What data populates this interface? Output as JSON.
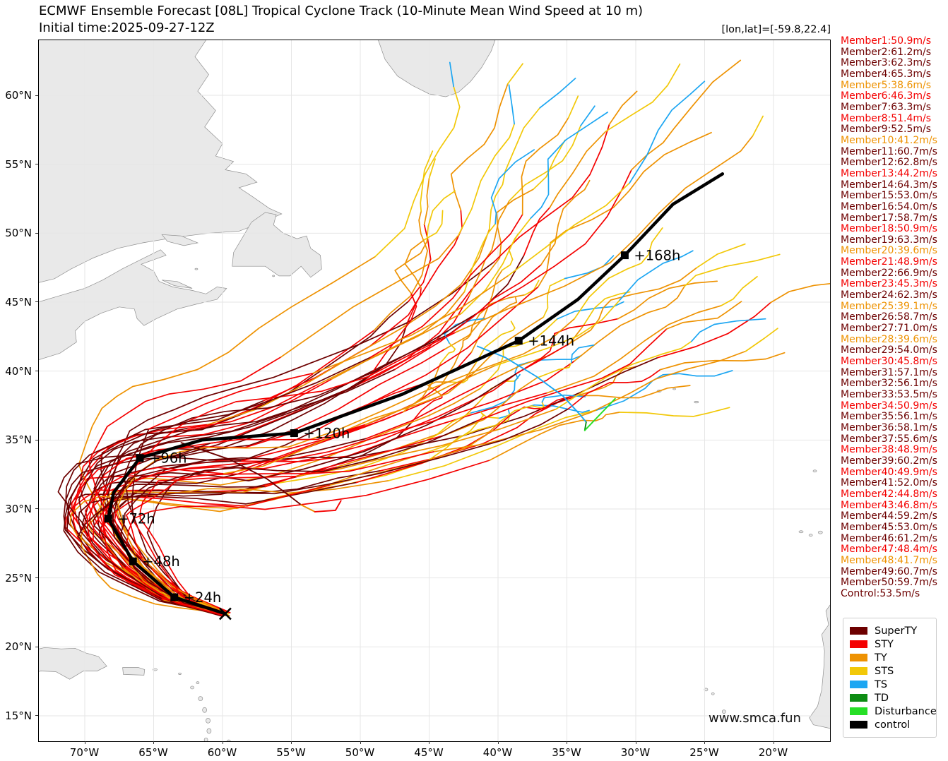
{
  "header": {
    "title": "ECMWF Ensemble Forecast [08L] Tropical Cyclone Track (10-Minute Mean Wind Speed at 10 m)",
    "initial_time": "Initial time:2025-09-27-12Z",
    "position_readout": "[lon,lat]=[-59.8,22.4]"
  },
  "watermark": "www.smca.fun",
  "legend": {
    "items": [
      {
        "label": "SuperTY",
        "category": "SuperTY"
      },
      {
        "label": "STY",
        "category": "STY"
      },
      {
        "label": "TY",
        "category": "TY"
      },
      {
        "label": "STS",
        "category": "STS"
      },
      {
        "label": "TS",
        "category": "TS"
      },
      {
        "label": "TD",
        "category": "TD"
      },
      {
        "label": "Disturbance",
        "category": "Disturbance"
      },
      {
        "label": "control",
        "category": "control"
      }
    ]
  },
  "chart_data": {
    "type": "line",
    "title": "ECMWF Ensemble Forecast [08L] Tropical Cyclone Track (10-Minute Mean Wind Speed at 10 m)",
    "initial_time": "2025-09-27-12Z",
    "storm_id": "08L",
    "start_position": {
      "lon": -59.8,
      "lat": 22.4
    },
    "axes": {
      "lon_ticks": [
        {
          "label": "70°W",
          "lon": -70
        },
        {
          "label": "65°W",
          "lon": -65
        },
        {
          "label": "60°W",
          "lon": -60
        },
        {
          "label": "55°W",
          "lon": -55
        },
        {
          "label": "50°W",
          "lon": -50
        },
        {
          "label": "45°W",
          "lon": -45
        },
        {
          "label": "40°W",
          "lon": -40
        },
        {
          "label": "35°W",
          "lon": -35
        },
        {
          "label": "30°W",
          "lon": -30
        },
        {
          "label": "25°W",
          "lon": -25
        },
        {
          "label": "20°W",
          "lon": -20
        }
      ],
      "lat_ticks": [
        {
          "label": "15°N",
          "lat": 15
        },
        {
          "label": "20°N",
          "lat": 20
        },
        {
          "label": "25°N",
          "lat": 25
        },
        {
          "label": "30°N",
          "lat": 30
        },
        {
          "label": "35°N",
          "lat": 35
        },
        {
          "label": "40°N",
          "lat": 40
        },
        {
          "label": "45°N",
          "lat": 45
        },
        {
          "label": "50°N",
          "lat": 50
        },
        {
          "label": "55°N",
          "lat": 55
        },
        {
          "label": "60°N",
          "lat": 60
        }
      ],
      "lon_range": [
        -73.3,
        -15.9
      ],
      "lat_range": [
        13.2,
        64.0
      ],
      "grid": true
    },
    "categories": {
      "SuperTY": "#6d0000",
      "STY": "#f40000",
      "TY": "#ee9202",
      "STS": "#f2c808",
      "TS": "#1ca6f2",
      "TD": "#0d8c13",
      "Disturbance": "#26df26",
      "control": "#000000"
    },
    "category_thresholds_ms": {
      "SuperTY": 52.0,
      "STY": 42.5,
      "TY": 32.7,
      "STS": 24.5,
      "TS": 17.0,
      "TD": 15.5
    },
    "control_track": {
      "label": "control",
      "wind": "53.5",
      "start": {
        "hour": 0,
        "lon": -59.8,
        "lat": 22.4
      },
      "points": [
        {
          "hour": 24,
          "lon": -63.5,
          "lat": 23.6
        },
        {
          "hour": 48,
          "lon": -66.5,
          "lat": 26.2
        },
        {
          "hour": 72,
          "lon": -68.3,
          "lat": 29.3
        },
        {
          "hour": 96,
          "lon": -66.0,
          "lat": 33.7
        },
        {
          "hour": 120,
          "lon": -54.8,
          "lat": 35.5
        },
        {
          "hour": 144,
          "lon": -38.5,
          "lat": 42.2
        },
        {
          "hour": 168,
          "lon": -30.8,
          "lat": 48.4
        }
      ],
      "path": [
        [
          -59.8,
          22.4
        ],
        [
          -63.5,
          23.6
        ],
        [
          -66.5,
          26.2
        ],
        [
          -68.3,
          29.3
        ],
        [
          -67.9,
          31.2
        ],
        [
          -66.0,
          33.7
        ],
        [
          -61.5,
          35.0
        ],
        [
          -54.8,
          35.5
        ],
        [
          -47.0,
          38.3
        ],
        [
          -38.5,
          42.2
        ],
        [
          -34.2,
          45.2
        ],
        [
          -30.8,
          48.4
        ],
        [
          -29.0,
          50.3
        ],
        [
          -27.3,
          52.1
        ],
        [
          -23.7,
          54.3
        ]
      ]
    },
    "members": [
      {
        "name": "Member1",
        "wind": "50.9",
        "category": "STY"
      },
      {
        "name": "Member2",
        "wind": "61.2",
        "category": "SuperTY"
      },
      {
        "name": "Member3",
        "wind": "62.3",
        "category": "SuperTY"
      },
      {
        "name": "Member4",
        "wind": "65.3",
        "category": "SuperTY"
      },
      {
        "name": "Member5",
        "wind": "38.6",
        "category": "TY"
      },
      {
        "name": "Member6",
        "wind": "46.3",
        "category": "STY"
      },
      {
        "name": "Member7",
        "wind": "63.3",
        "category": "SuperTY"
      },
      {
        "name": "Member8",
        "wind": "51.4",
        "category": "STY"
      },
      {
        "name": "Member9",
        "wind": "52.5",
        "category": "SuperTY"
      },
      {
        "name": "Member10",
        "wind": "41.2",
        "category": "TY"
      },
      {
        "name": "Member11",
        "wind": "60.7",
        "category": "SuperTY"
      },
      {
        "name": "Member12",
        "wind": "62.8",
        "category": "SuperTY"
      },
      {
        "name": "Member13",
        "wind": "44.2",
        "category": "STY"
      },
      {
        "name": "Member14",
        "wind": "64.3",
        "category": "SuperTY"
      },
      {
        "name": "Member15",
        "wind": "53.0",
        "category": "SuperTY"
      },
      {
        "name": "Member16",
        "wind": "54.0",
        "category": "SuperTY"
      },
      {
        "name": "Member17",
        "wind": "58.7",
        "category": "SuperTY"
      },
      {
        "name": "Member18",
        "wind": "50.9",
        "category": "STY"
      },
      {
        "name": "Member19",
        "wind": "63.3",
        "category": "SuperTY"
      },
      {
        "name": "Member20",
        "wind": "39.6",
        "category": "TY"
      },
      {
        "name": "Member21",
        "wind": "48.9",
        "category": "STY"
      },
      {
        "name": "Member22",
        "wind": "66.9",
        "category": "SuperTY"
      },
      {
        "name": "Member23",
        "wind": "45.3",
        "category": "STY"
      },
      {
        "name": "Member24",
        "wind": "62.3",
        "category": "SuperTY"
      },
      {
        "name": "Member25",
        "wind": "39.1",
        "category": "TY"
      },
      {
        "name": "Member26",
        "wind": "58.7",
        "category": "SuperTY"
      },
      {
        "name": "Member27",
        "wind": "71.0",
        "category": "SuperTY"
      },
      {
        "name": "Member28",
        "wind": "39.6",
        "category": "TY"
      },
      {
        "name": "Member29",
        "wind": "54.0",
        "category": "SuperTY"
      },
      {
        "name": "Member30",
        "wind": "45.8",
        "category": "STY"
      },
      {
        "name": "Member31",
        "wind": "57.1",
        "category": "SuperTY"
      },
      {
        "name": "Member32",
        "wind": "56.1",
        "category": "SuperTY"
      },
      {
        "name": "Member33",
        "wind": "53.5",
        "category": "SuperTY"
      },
      {
        "name": "Member34",
        "wind": "50.9",
        "category": "STY"
      },
      {
        "name": "Member35",
        "wind": "56.1",
        "category": "SuperTY"
      },
      {
        "name": "Member36",
        "wind": "58.1",
        "category": "SuperTY"
      },
      {
        "name": "Member37",
        "wind": "55.6",
        "category": "SuperTY"
      },
      {
        "name": "Member38",
        "wind": "48.9",
        "category": "STY"
      },
      {
        "name": "Member39",
        "wind": "60.2",
        "category": "SuperTY"
      },
      {
        "name": "Member40",
        "wind": "49.9",
        "category": "STY"
      },
      {
        "name": "Member41",
        "wind": "52.0",
        "category": "SuperTY"
      },
      {
        "name": "Member42",
        "wind": "44.8",
        "category": "STY"
      },
      {
        "name": "Member43",
        "wind": "46.8",
        "category": "STY"
      },
      {
        "name": "Member44",
        "wind": "59.2",
        "category": "SuperTY"
      },
      {
        "name": "Member45",
        "wind": "53.0",
        "category": "SuperTY"
      },
      {
        "name": "Member46",
        "wind": "61.2",
        "category": "SuperTY"
      },
      {
        "name": "Member47",
        "wind": "48.4",
        "category": "STY"
      },
      {
        "name": "Member48",
        "wind": "41.7",
        "category": "TY"
      },
      {
        "name": "Member49",
        "wind": "60.7",
        "category": "SuperTY"
      },
      {
        "name": "Member50",
        "wind": "59.7",
        "category": "SuperTY"
      }
    ],
    "control_member": {
      "name": "Control",
      "wind": "53.5",
      "category": "SuperTY"
    },
    "weakening_track": {
      "segments": [
        {
          "category": "TS",
          "points": [
            [
              -41.5,
              41.8
            ],
            [
              -39.5,
              41.0
            ],
            [
              -37.2,
              39.6
            ],
            [
              -35.3,
              38.2
            ],
            [
              -34.1,
              36.9
            ],
            [
              -33.6,
              36.3
            ]
          ]
        },
        {
          "category": "TD",
          "points": [
            [
              -33.6,
              36.3
            ],
            [
              -33.7,
              35.7
            ]
          ]
        },
        {
          "category": "Disturbance",
          "points": [
            [
              -33.7,
              35.7
            ],
            [
              -31.5,
              38.0
            ]
          ]
        }
      ]
    },
    "outlier_track": {
      "segments": [
        {
          "category": "SuperTY",
          "points": [
            [
              -63.0,
              34.8
            ],
            [
              -59.5,
              33.6
            ],
            [
              -56.8,
              32.2
            ],
            [
              -55.2,
              31.0
            ],
            [
              -54.3,
              30.3
            ]
          ]
        },
        {
          "category": "TY",
          "points": [
            [
              -54.3,
              30.3
            ],
            [
              -53.3,
              29.8
            ]
          ]
        },
        {
          "category": "STY",
          "points": [
            [
              -53.3,
              29.8
            ],
            [
              -51.8,
              29.9
            ],
            [
              -51.4,
              30.6
            ]
          ]
        }
      ]
    }
  }
}
